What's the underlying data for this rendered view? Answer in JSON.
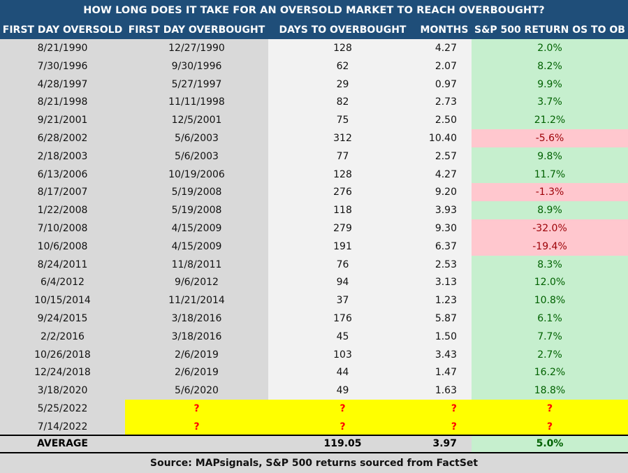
{
  "title": "HOW LONG DOES IT TAKE FOR AN OVERSOLD MARKET TO REACH OVERBOUGHT?",
  "headers": [
    "FIRST DAY OVERSOLD",
    "FIRST DAY OVERBOUGHT",
    "DAYS TO OVERBOUGHT",
    "MONTHS",
    "S&P 500 RETURN OS TO OB"
  ],
  "colors": {
    "header_bg": "#1f4e79",
    "positive_bg": "#c6efce",
    "positive_text": "#006100",
    "negative_bg": "#ffc7ce",
    "negative_text": "#9c0006",
    "pending_bg": "#ffff00",
    "pending_text": "#ff0000"
  },
  "chart_data": {
    "type": "table",
    "columns": [
      "FIRST DAY OVERSOLD",
      "FIRST DAY OVERBOUGHT",
      "DAYS TO OVERBOUGHT",
      "MONTHS",
      "S&P 500 RETURN OS TO OB"
    ],
    "rows": [
      [
        "8/21/1990",
        "12/27/1990",
        "128",
        "4.27",
        "2.0%"
      ],
      [
        "7/30/1996",
        "9/30/1996",
        "62",
        "2.07",
        "8.2%"
      ],
      [
        "4/28/1997",
        "5/27/1997",
        "29",
        "0.97",
        "9.9%"
      ],
      [
        "8/21/1998",
        "11/11/1998",
        "82",
        "2.73",
        "3.7%"
      ],
      [
        "9/21/2001",
        "12/5/2001",
        "75",
        "2.50",
        "21.2%"
      ],
      [
        "6/28/2002",
        "5/6/2003",
        "312",
        "10.40",
        "-5.6%"
      ],
      [
        "2/18/2003",
        "5/6/2003",
        "77",
        "2.57",
        "9.8%"
      ],
      [
        "6/13/2006",
        "10/19/2006",
        "128",
        "4.27",
        "11.7%"
      ],
      [
        "8/17/2007",
        "5/19/2008",
        "276",
        "9.20",
        "-1.3%"
      ],
      [
        "1/22/2008",
        "5/19/2008",
        "118",
        "3.93",
        "8.9%"
      ],
      [
        "7/10/2008",
        "4/15/2009",
        "279",
        "9.30",
        "-32.0%"
      ],
      [
        "10/6/2008",
        "4/15/2009",
        "191",
        "6.37",
        "-19.4%"
      ],
      [
        "8/24/2011",
        "11/8/2011",
        "76",
        "2.53",
        "8.3%"
      ],
      [
        "6/4/2012",
        "9/6/2012",
        "94",
        "3.13",
        "12.0%"
      ],
      [
        "10/15/2014",
        "11/21/2014",
        "37",
        "1.23",
        "10.8%"
      ],
      [
        "9/24/2015",
        "3/18/2016",
        "176",
        "5.87",
        "6.1%"
      ],
      [
        "2/2/2016",
        "3/18/2016",
        "45",
        "1.50",
        "7.7%"
      ],
      [
        "10/26/2018",
        "2/6/2019",
        "103",
        "3.43",
        "2.7%"
      ],
      [
        "12/24/2018",
        "2/6/2019",
        "44",
        "1.47",
        "16.2%"
      ],
      [
        "3/18/2020",
        "5/6/2020",
        "49",
        "1.63",
        "18.8%"
      ],
      [
        "5/25/2022",
        "?",
        "?",
        "?",
        "?"
      ],
      [
        "7/14/2022",
        "?",
        "?",
        "?",
        "?"
      ]
    ],
    "average": [
      "AVERAGE",
      "",
      "119.05",
      "3.97",
      "5.0%"
    ]
  },
  "source": "Source: MAPsignals, S&P 500 returns sourced from FactSet"
}
